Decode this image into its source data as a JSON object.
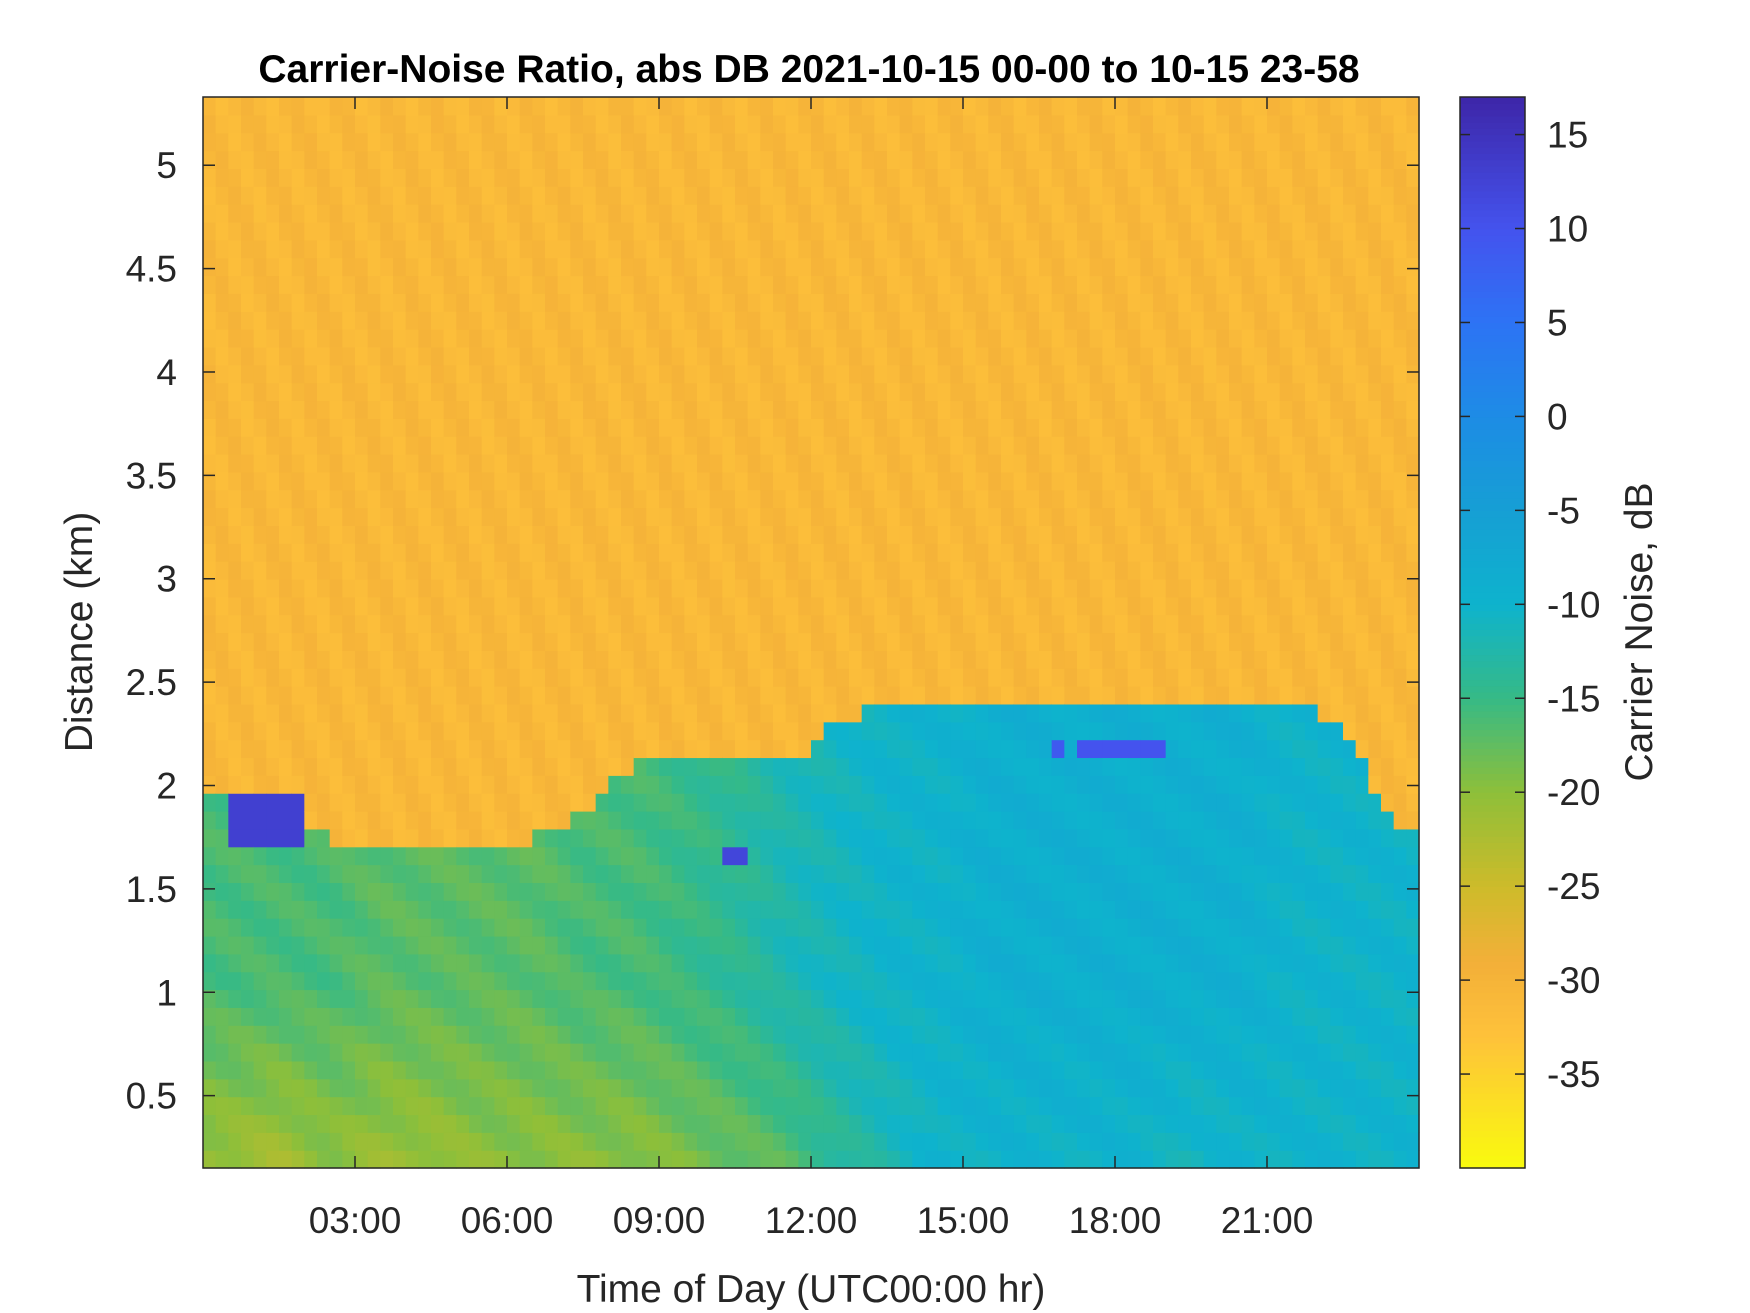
{
  "chart_data": {
    "type": "heatmap",
    "title": "Carrier-Noise Ratio, abs DB 2021-10-15 00-00 to 10-15 23-58",
    "xlabel": "Time of Day (UTC00:00 hr)",
    "ylabel": "Distance (km)",
    "xlim": [
      0,
      24
    ],
    "ylim": [
      0.15,
      5.33
    ],
    "x_ticks": [
      {
        "value": 3,
        "label": "03:00"
      },
      {
        "value": 6,
        "label": "06:00"
      },
      {
        "value": 9,
        "label": "09:00"
      },
      {
        "value": 12,
        "label": "12:00"
      },
      {
        "value": 15,
        "label": "15:00"
      },
      {
        "value": 18,
        "label": "18:00"
      },
      {
        "value": 21,
        "label": "21:00"
      }
    ],
    "y_ticks": [
      {
        "value": 0.5,
        "label": "0.5"
      },
      {
        "value": 1,
        "label": "1"
      },
      {
        "value": 1.5,
        "label": "1.5"
      },
      {
        "value": 2,
        "label": "2"
      },
      {
        "value": 2.5,
        "label": "2.5"
      },
      {
        "value": 3,
        "label": "3"
      },
      {
        "value": 3.5,
        "label": "3.5"
      },
      {
        "value": 4,
        "label": "4"
      },
      {
        "value": 4.5,
        "label": "4.5"
      },
      {
        "value": 5,
        "label": "5"
      }
    ],
    "colorbar": {
      "label": "Carrier Noise, dB",
      "range": [
        -40,
        17
      ],
      "ticks": [
        {
          "value": 15,
          "label": "15"
        },
        {
          "value": 10,
          "label": "10"
        },
        {
          "value": 5,
          "label": "5"
        },
        {
          "value": 0,
          "label": "0"
        },
        {
          "value": -5,
          "label": "-5"
        },
        {
          "value": -10,
          "label": "-10"
        },
        {
          "value": -15,
          "label": "-15"
        },
        {
          "value": -20,
          "label": "-20"
        },
        {
          "value": -25,
          "label": "-25"
        },
        {
          "value": -30,
          "label": "-30"
        },
        {
          "value": -35,
          "label": "-35"
        }
      ],
      "colormap": "parula-reversed"
    },
    "hours": [
      0.5,
      1.5,
      2.5,
      3.5,
      4.5,
      5.5,
      6.5,
      7.5,
      8.5,
      9.5,
      10.5,
      11.5,
      12.5,
      13.5,
      14.5,
      15.5,
      16.5,
      17.5,
      18.5,
      19.5,
      20.5,
      21.5,
      22.5,
      23.5
    ],
    "background_level_db": -31,
    "boundary_height_km": [
      2.0,
      1.8,
      1.75,
      1.7,
      1.7,
      1.7,
      1.75,
      1.85,
      2.1,
      2.1,
      2.1,
      2.1,
      2.3,
      2.4,
      2.4,
      2.4,
      2.4,
      2.4,
      2.4,
      2.4,
      2.4,
      2.4,
      2.3,
      1.8
    ],
    "low_level_db": [
      -16,
      -16,
      -16,
      -17,
      -17,
      -17,
      -17,
      -16,
      -16,
      -15,
      -14,
      -12,
      -11,
      -10,
      -10,
      -9,
      -9,
      -9,
      -9,
      -9,
      -9,
      -10,
      -10,
      -10
    ],
    "near_ground_db": [
      -21,
      -22,
      -20,
      -21,
      -21,
      -20,
      -20,
      -20,
      -20,
      -19,
      -18,
      -17,
      -14,
      -12,
      -10,
      -10,
      -10,
      -10,
      -10,
      -11,
      -10,
      -10,
      -10,
      -10
    ],
    "strong_echoes": [
      {
        "t0": 0.6,
        "t1": 2.1,
        "d0": 1.72,
        "d1": 1.92,
        "db": 13
      },
      {
        "t0": 10.3,
        "t1": 10.8,
        "d0": 1.6,
        "d1": 1.72,
        "db": 12
      },
      {
        "t0": 16.8,
        "t1": 17.1,
        "d0": 2.1,
        "d1": 2.22,
        "db": 9
      },
      {
        "t0": 17.3,
        "t1": 18.9,
        "d0": 2.1,
        "d1": 2.24,
        "db": 10
      }
    ]
  }
}
